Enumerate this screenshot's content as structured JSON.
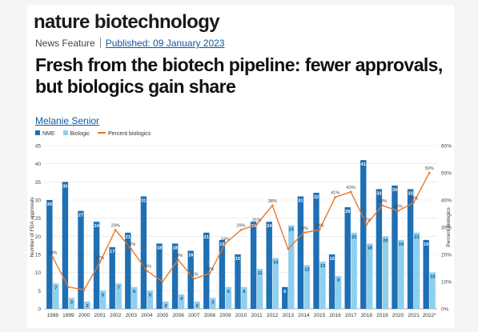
{
  "journal": "nature biotechnology",
  "article_type": "News Feature",
  "published": "Published: 09 January 2023",
  "title": "Fresh from the biotech pipeline: fewer approvals, but biologics gain share",
  "author": "Melanie Senior",
  "colors": {
    "nme": "#1f6fb4",
    "biologic": "#8ecfee",
    "percent": "#e8782a",
    "link": "#0a5aa6"
  },
  "chart_data": {
    "type": "bar",
    "categories": [
      "1998",
      "1999",
      "2000",
      "2001",
      "2002",
      "2003",
      "2004",
      "2005",
      "2006",
      "2007",
      "2008",
      "2009",
      "2010",
      "2011",
      "2012",
      "2013",
      "2014",
      "2015",
      "2016",
      "2017",
      "2018",
      "2019",
      "2020",
      "2021",
      "2022*"
    ],
    "series": [
      {
        "name": "NME",
        "type": "bar",
        "axis": "left",
        "values": [
          30,
          35,
          27,
          24,
          17,
          21,
          31,
          18,
          18,
          16,
          21,
          19,
          15,
          24,
          24,
          6,
          31,
          32,
          15,
          28,
          41,
          33,
          34,
          33,
          19
        ],
        "labels": [
          "30",
          "35",
          "27",
          "24",
          "17",
          "21",
          "31",
          "18",
          "18",
          "16",
          "21",
          "19",
          "15",
          "24",
          "24",
          "6",
          "31",
          "32",
          "15",
          "28",
          "41",
          "33",
          "34",
          "33",
          "19"
        ]
      },
      {
        "name": "Biologic",
        "type": "bar",
        "axis": "left",
        "values": [
          7,
          3,
          2,
          5,
          7,
          6,
          5,
          2,
          4,
          2,
          3,
          6,
          6,
          11,
          14,
          23,
          12,
          13,
          9,
          21,
          18,
          20,
          19,
          21,
          10
        ],
        "labels": [
          "7",
          "3",
          "2",
          "5",
          "7",
          "6",
          "5",
          "2",
          "4",
          "2",
          "3",
          "6",
          "6",
          "11",
          "14",
          "23",
          "12",
          "13",
          "9",
          "21",
          "18",
          "20",
          "19",
          "21",
          "10"
        ]
      },
      {
        "name": "Percent biologics",
        "type": "line",
        "axis": "right",
        "values": [
          19,
          8,
          7,
          17,
          29,
          22,
          14,
          10,
          18,
          11,
          13,
          24,
          29,
          31,
          38,
          22,
          28,
          29,
          41,
          43,
          31,
          38,
          36,
          39,
          50
        ],
        "labels": [
          "19%",
          "",
          "",
          "17%",
          "29%",
          "22%",
          "14%",
          "",
          "18%",
          "11%",
          "13%",
          "24%",
          "29%",
          "31%",
          "38%",
          "",
          "28%",
          "29%",
          "41%",
          "43%",
          "31%",
          "38%",
          "36%",
          "39%",
          "50%"
        ]
      }
    ],
    "y_left": {
      "label": "Number of FDA approvals",
      "min": 0,
      "max": 45,
      "ticks": [
        "0",
        "5",
        "10",
        "15",
        "20",
        "25",
        "30",
        "35",
        "40",
        "45"
      ]
    },
    "y_right": {
      "label": "Percent biologics",
      "min": 0,
      "max": 60,
      "ticks": [
        "0%",
        "10%",
        "20%",
        "30%",
        "40%",
        "50%",
        "60%"
      ]
    },
    "grid": true,
    "legend_position": "top-left"
  }
}
